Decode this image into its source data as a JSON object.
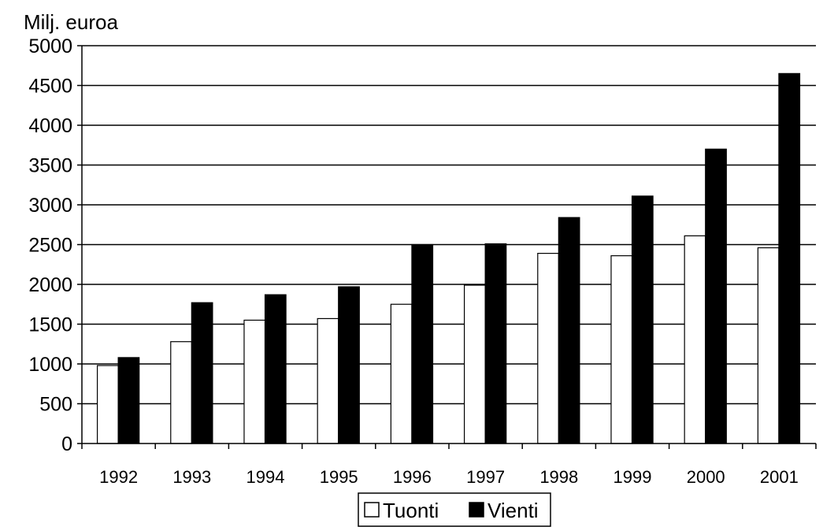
{
  "chart_data": {
    "type": "bar",
    "ylabel": "Milj. euroa",
    "xlabel": "",
    "title": "",
    "categories": [
      "1992",
      "1993",
      "1994",
      "1995",
      "1996",
      "1997",
      "1998",
      "1999",
      "2000",
      "2001"
    ],
    "series": [
      {
        "name": "Tuonti",
        "color": "#ffffff",
        "values": [
          980,
          1280,
          1550,
          1570,
          1750,
          1990,
          2390,
          2360,
          2610,
          2460
        ]
      },
      {
        "name": "Vienti",
        "color": "#000000",
        "values": [
          1080,
          1770,
          1870,
          1970,
          2500,
          2510,
          2840,
          3110,
          3700,
          4650
        ]
      }
    ],
    "ylim": [
      0,
      5000
    ],
    "yticks": [
      "0",
      "500",
      "1000",
      "1500",
      "2000",
      "2500",
      "3000",
      "3500",
      "4000",
      "4500",
      "5000"
    ],
    "grid": "horizontal",
    "legend_position": "bottom"
  }
}
